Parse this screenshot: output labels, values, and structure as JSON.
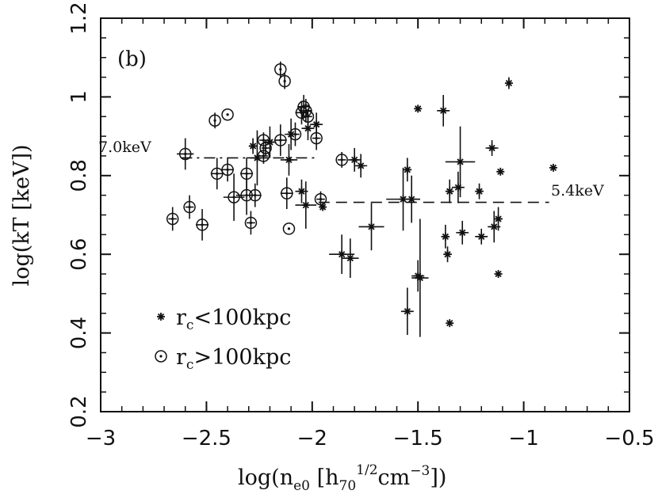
{
  "chart_data": {
    "type": "scatter",
    "panel_label": "(b)",
    "xlabel": {
      "main": "log(n",
      "sub": "e0",
      "mid": " [h",
      "sub2": "70",
      "sup": "1/2",
      "unit": "cm",
      "sup2": "−3",
      "end": "])"
    },
    "ylabel": "log(kT [keV])",
    "xlim": [
      -3,
      -0.5
    ],
    "ylim": [
      0.2,
      1.2
    ],
    "xticks": [
      -3,
      -2.5,
      -2,
      -1.5,
      -1,
      -0.5
    ],
    "xtick_labels": [
      "−3",
      "−2.5",
      "−2",
      "−1.5",
      "−1",
      "−0.5"
    ],
    "yticks": [
      0.2,
      0.4,
      0.6,
      0.8,
      1,
      1.2
    ],
    "ytick_labels": [
      "0.2",
      "0.4",
      "0.6",
      "0.8",
      "1",
      "1.2"
    ],
    "reference_lines": [
      {
        "label": "7.0keV",
        "y": 0.845,
        "x": [
          -2.62,
          -1.97
        ],
        "style": "dash-dot"
      },
      {
        "label": "5.4keV",
        "y": 0.732,
        "x": [
          -1.97,
          -0.88
        ],
        "style": "dashed"
      }
    ],
    "legend": [
      {
        "label": "r",
        "sub": "c",
        "rest": "<100kpc",
        "marker": "star"
      },
      {
        "label": "r",
        "sub": "c",
        "rest": ">100kpc",
        "marker": "circle"
      }
    ],
    "series": [
      {
        "name": "rc<100kpc",
        "marker": "star",
        "points": [
          [
            -1.07,
            1.035,
            0,
            0.015
          ],
          [
            -1.5,
            0.97,
            0,
            0
          ],
          [
            -1.38,
            0.965,
            0.03,
            0.04
          ],
          [
            -1.15,
            0.87,
            0.03,
            0.02
          ],
          [
            -1.11,
            0.81,
            0,
            0
          ],
          [
            -0.86,
            0.82,
            0,
            0
          ],
          [
            -1.3,
            0.835,
            0.07,
            0.09
          ],
          [
            -1.35,
            0.76,
            0.02,
            0.03
          ],
          [
            -1.31,
            0.77,
            0.03,
            0.04
          ],
          [
            -1.21,
            0.76,
            0.02,
            0.02
          ],
          [
            -1.12,
            0.69,
            0.02,
            0.03
          ],
          [
            -1.14,
            0.67,
            0.03,
            0.04
          ],
          [
            -1.2,
            0.645,
            0.03,
            0.02
          ],
          [
            -1.29,
            0.655,
            0.03,
            0.03
          ],
          [
            -1.37,
            0.645,
            0.02,
            0.03
          ],
          [
            -1.36,
            0.6,
            0.02,
            0.02
          ],
          [
            -1.12,
            0.55,
            0,
            0
          ],
          [
            -1.35,
            0.425,
            0,
            0
          ],
          [
            -1.55,
            0.455,
            0.03,
            0.06
          ],
          [
            -1.49,
            0.54,
            0.04,
            0.15
          ],
          [
            -1.5,
            0.545,
            0.03,
            0.04
          ],
          [
            -1.55,
            0.815,
            0.02,
            0.03
          ],
          [
            -1.57,
            0.74,
            0.08,
            0.08
          ],
          [
            -1.53,
            0.74,
            0.04,
            0.06
          ],
          [
            -1.72,
            0.67,
            0.06,
            0.06
          ],
          [
            -1.8,
            0.84,
            0.03,
            0.03
          ],
          [
            -1.77,
            0.825,
            0.03,
            0.03
          ],
          [
            -1.82,
            0.59,
            0.04,
            0.05
          ],
          [
            -1.86,
            0.6,
            0.06,
            0.05
          ],
          [
            -1.95,
            0.72,
            0,
            0
          ],
          [
            -2.03,
            0.725,
            0.05,
            0.06
          ],
          [
            -2.05,
            0.76,
            0.03,
            0.03
          ],
          [
            -1.98,
            0.93,
            0.03,
            0.03
          ],
          [
            -2.02,
            0.92,
            0.03,
            0.03
          ],
          [
            -2.1,
            0.905,
            0.03,
            0.04
          ],
          [
            -2.2,
            0.885,
            0.03,
            0.04
          ],
          [
            -2.28,
            0.875,
            0.02,
            0.02
          ],
          [
            -2.11,
            0.84,
            0.04,
            0.04
          ],
          [
            -2.26,
            0.845,
            0.05,
            0.07
          ]
        ]
      },
      {
        "name": "rc>100kpc",
        "marker": "circle",
        "points": [
          [
            -2.15,
            1.07,
            0,
            0.02
          ],
          [
            -2.13,
            1.04,
            0,
            0.02
          ],
          [
            -2.04,
            0.975,
            0.03,
            0.03
          ],
          [
            -2.03,
            0.965,
            0.03,
            0.03
          ],
          [
            -2.05,
            0.96,
            0.03,
            0.03
          ],
          [
            -2.02,
            0.95,
            0.02,
            0.02
          ],
          [
            -2.46,
            0.94,
            0,
            0.02
          ],
          [
            -2.4,
            0.955,
            0,
            0
          ],
          [
            -2.15,
            0.89,
            0.03,
            0.04
          ],
          [
            -1.98,
            0.895,
            0.02,
            0.03
          ],
          [
            -2.08,
            0.905,
            0.02,
            0.03
          ],
          [
            -2.23,
            0.89,
            0.02,
            0.02
          ],
          [
            -2.22,
            0.87,
            0.02,
            0.02
          ],
          [
            -2.23,
            0.85,
            0.02,
            0.02
          ],
          [
            -2.6,
            0.855,
            0.04,
            0.04
          ],
          [
            -2.45,
            0.805,
            0.03,
            0.04
          ],
          [
            -2.4,
            0.815,
            0.03,
            0.03
          ],
          [
            -2.31,
            0.805,
            0.03,
            0.04
          ],
          [
            -2.37,
            0.745,
            0.05,
            0.06
          ],
          [
            -2.31,
            0.75,
            0.05,
            0.05
          ],
          [
            -2.27,
            0.75,
            0.03,
            0.03
          ],
          [
            -2.12,
            0.755,
            0.03,
            0.04
          ],
          [
            -1.96,
            0.74,
            0.02,
            0.02
          ],
          [
            -1.86,
            0.84,
            0.02,
            0.02
          ],
          [
            -2.58,
            0.72,
            0.02,
            0.03
          ],
          [
            -2.66,
            0.69,
            0.02,
            0.03
          ],
          [
            -2.52,
            0.675,
            0.03,
            0.04
          ],
          [
            -2.29,
            0.68,
            0.02,
            0.03
          ],
          [
            -2.11,
            0.665,
            0,
            0
          ]
        ]
      }
    ]
  }
}
